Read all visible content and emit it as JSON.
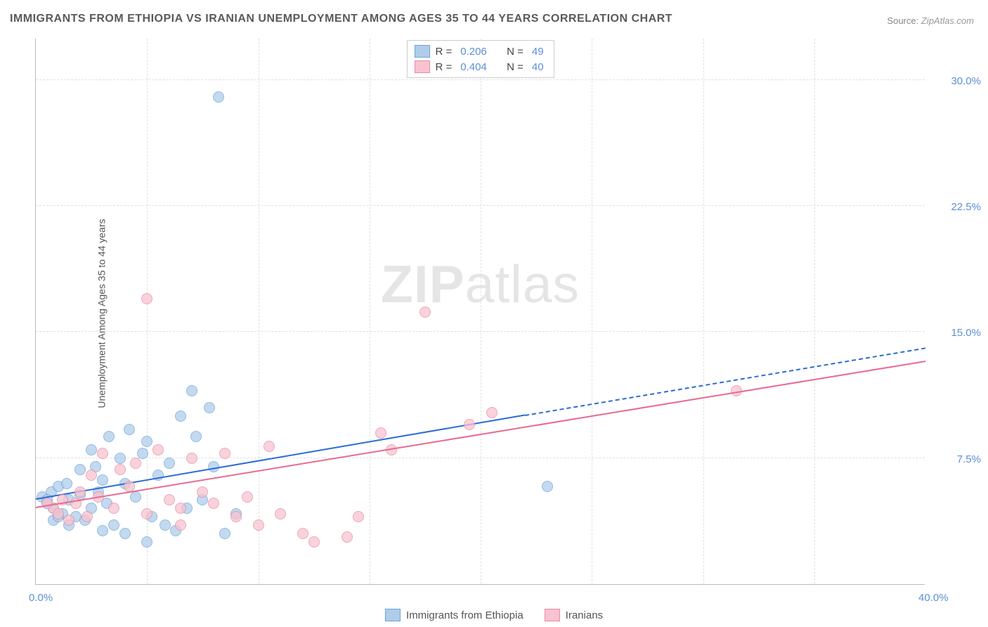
{
  "title": "IMMIGRANTS FROM ETHIOPIA VS IRANIAN UNEMPLOYMENT AMONG AGES 35 TO 44 YEARS CORRELATION CHART",
  "source_label": "Source:",
  "source_value": "ZipAtlas.com",
  "ylabel": "Unemployment Among Ages 35 to 44 years",
  "watermark_bold": "ZIP",
  "watermark_light": "atlas",
  "chart": {
    "type": "scatter",
    "xlim": [
      0,
      40
    ],
    "ylim": [
      0,
      32.5
    ],
    "xticks": [
      0,
      40
    ],
    "xtick_labels": [
      "0.0%",
      "40.0%"
    ],
    "yticks": [
      7.5,
      15.0,
      22.5,
      30.0
    ],
    "ytick_labels": [
      "7.5%",
      "15.0%",
      "22.5%",
      "30.0%"
    ],
    "grid_color": "#e0e0e0",
    "background_color": "#ffffff",
    "axis_color": "#bbbbbb",
    "marker_size": 16,
    "series": [
      {
        "name": "Immigrants from Ethiopia",
        "color_fill": "#afcdea",
        "color_stroke": "#6fa3d9",
        "r": 0.206,
        "n": 49,
        "trend": {
          "x1": 0,
          "y1": 5.0,
          "x2": 22,
          "y2": 10.0,
          "solid_color": "#2b6cd4",
          "dash_x2": 40,
          "dash_y2": 14.0
        },
        "points": [
          [
            0.3,
            5.2
          ],
          [
            0.5,
            4.8
          ],
          [
            0.7,
            5.5
          ],
          [
            0.8,
            4.5
          ],
          [
            1.0,
            5.8
          ],
          [
            1.2,
            4.2
          ],
          [
            1.4,
            6.0
          ],
          [
            1.5,
            5.0
          ],
          [
            1.8,
            4.0
          ],
          [
            2.0,
            5.3
          ],
          [
            2.0,
            6.8
          ],
          [
            2.2,
            3.8
          ],
          [
            2.5,
            4.5
          ],
          [
            2.7,
            7.0
          ],
          [
            2.8,
            5.5
          ],
          [
            3.0,
            6.2
          ],
          [
            3.2,
            4.8
          ],
          [
            3.3,
            8.8
          ],
          [
            3.5,
            3.5
          ],
          [
            3.8,
            7.5
          ],
          [
            4.0,
            6.0
          ],
          [
            4.2,
            9.2
          ],
          [
            4.5,
            5.2
          ],
          [
            4.8,
            7.8
          ],
          [
            5.0,
            8.5
          ],
          [
            5.2,
            4.0
          ],
          [
            5.5,
            6.5
          ],
          [
            5.8,
            3.5
          ],
          [
            6.0,
            7.2
          ],
          [
            6.5,
            10.0
          ],
          [
            6.8,
            4.5
          ],
          [
            7.0,
            11.5
          ],
          [
            7.2,
            8.8
          ],
          [
            7.5,
            5.0
          ],
          [
            7.8,
            10.5
          ],
          [
            8.0,
            7.0
          ],
          [
            8.5,
            3.0
          ],
          [
            9.0,
            4.2
          ],
          [
            8.2,
            29.0
          ],
          [
            5.0,
            2.5
          ],
          [
            6.3,
            3.2
          ],
          [
            4.0,
            3.0
          ],
          [
            3.0,
            3.2
          ],
          [
            1.5,
            3.5
          ],
          [
            0.8,
            3.8
          ],
          [
            2.5,
            8.0
          ],
          [
            23.0,
            5.8
          ],
          [
            1.0,
            4.0
          ],
          [
            0.5,
            5.0
          ]
        ]
      },
      {
        "name": "Iranians",
        "color_fill": "#f7c3cf",
        "color_stroke": "#e88ba3",
        "r": 0.404,
        "n": 40,
        "trend": {
          "x1": 0,
          "y1": 4.5,
          "x2": 40,
          "y2": 13.2,
          "solid_color": "#e76b8f"
        },
        "points": [
          [
            0.8,
            4.5
          ],
          [
            1.2,
            5.0
          ],
          [
            1.5,
            3.8
          ],
          [
            1.8,
            4.8
          ],
          [
            2.0,
            5.5
          ],
          [
            2.3,
            4.0
          ],
          [
            2.5,
            6.5
          ],
          [
            2.8,
            5.2
          ],
          [
            3.0,
            7.8
          ],
          [
            3.5,
            4.5
          ],
          [
            3.8,
            6.8
          ],
          [
            4.2,
            5.8
          ],
          [
            4.5,
            7.2
          ],
          [
            5.0,
            4.2
          ],
          [
            5.5,
            8.0
          ],
          [
            6.0,
            5.0
          ],
          [
            6.5,
            4.5
          ],
          [
            7.0,
            7.5
          ],
          [
            7.5,
            5.5
          ],
          [
            8.0,
            4.8
          ],
          [
            8.5,
            7.8
          ],
          [
            9.0,
            4.0
          ],
          [
            9.5,
            5.2
          ],
          [
            10.0,
            3.5
          ],
          [
            10.5,
            8.2
          ],
          [
            11.0,
            4.2
          ],
          [
            12.0,
            3.0
          ],
          [
            12.5,
            2.5
          ],
          [
            14.0,
            2.8
          ],
          [
            14.5,
            4.0
          ],
          [
            15.5,
            9.0
          ],
          [
            16.0,
            8.0
          ],
          [
            17.5,
            16.2
          ],
          [
            19.5,
            9.5
          ],
          [
            20.5,
            10.2
          ],
          [
            31.5,
            11.5
          ],
          [
            5.0,
            17.0
          ],
          [
            6.5,
            3.5
          ],
          [
            1.0,
            4.2
          ],
          [
            0.5,
            4.8
          ]
        ]
      }
    ]
  },
  "legend": {
    "r_label": "R =",
    "n_label": "N ="
  },
  "bottom_legend": [
    {
      "label": "Immigrants from Ethiopia",
      "fill": "#afcdea",
      "stroke": "#6fa3d9"
    },
    {
      "label": "Iranians",
      "fill": "#f7c3cf",
      "stroke": "#e88ba3"
    }
  ]
}
